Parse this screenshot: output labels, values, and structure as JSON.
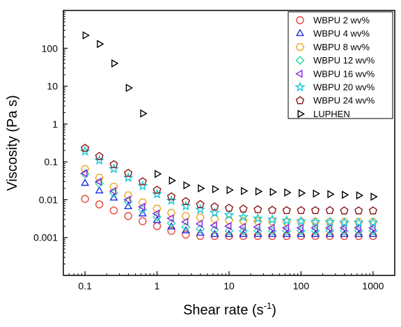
{
  "chart_data": {
    "type": "scatter",
    "xlabel": "Shear rate (s",
    "xlabel_sup": "-1",
    "xlabel_close": ")",
    "ylabel": "Viscosity (Pa s)",
    "xscale": "log",
    "yscale": "log",
    "xlim": [
      0.05,
      2000
    ],
    "ylim": [
      0.0001,
      1000
    ],
    "xticks": [
      0.1,
      1,
      10,
      100,
      1000
    ],
    "xtick_labels": [
      "0.1",
      "1",
      "10",
      "100",
      "1000"
    ],
    "yticks": [
      0.001,
      0.01,
      0.1,
      1,
      10,
      100
    ],
    "ytick_labels": [
      "0.001",
      "0.01",
      "0.1",
      "1",
      "10",
      "100"
    ],
    "grid": false,
    "legend_position": "top-right",
    "x": [
      0.1,
      0.158,
      0.251,
      0.398,
      0.631,
      1,
      1.58,
      2.51,
      3.98,
      6.31,
      10,
      15.8,
      25.1,
      39.8,
      63.1,
      100,
      158,
      251,
      398,
      631,
      1000
    ],
    "series": [
      {
        "name": "WBPU 2 wv%",
        "marker": "circle",
        "color": "#e8463c",
        "values": [
          0.0105,
          0.0075,
          0.0052,
          0.0037,
          0.0027,
          0.002,
          0.0015,
          0.0012,
          0.0011,
          0.0011,
          0.0011,
          0.0011,
          0.0011,
          0.0011,
          0.0011,
          0.0011,
          0.0011,
          0.0011,
          0.0011,
          0.0011,
          0.0011
        ]
      },
      {
        "name": "WBPU 4 wv%",
        "marker": "triangle-up",
        "color": "#1a2fe8",
        "values": [
          0.027,
          0.017,
          0.011,
          0.0065,
          0.0042,
          0.0028,
          0.0019,
          0.0015,
          0.0013,
          0.0012,
          0.0012,
          0.0012,
          0.0012,
          0.0012,
          0.0012,
          0.0012,
          0.0012,
          0.0012,
          0.0012,
          0.0012,
          0.0012
        ]
      },
      {
        "name": "WBPU 8 wv%",
        "marker": "hexagon",
        "color": "#e8a82a",
        "values": [
          0.065,
          0.038,
          0.022,
          0.013,
          0.0085,
          0.0058,
          0.0045,
          0.0037,
          0.0034,
          0.0031,
          0.0029,
          0.0028,
          0.0027,
          0.0027,
          0.0026,
          0.0026,
          0.0026,
          0.0026,
          0.0026,
          0.0026,
          0.0026
        ]
      },
      {
        "name": "WBPU 12 wv%",
        "marker": "diamond",
        "color": "#2ad8a8",
        "values": [
          0.048,
          0.027,
          0.015,
          0.009,
          0.0055,
          0.0035,
          0.0024,
          0.0019,
          0.0017,
          0.0016,
          0.0015,
          0.0015,
          0.0015,
          0.0015,
          0.0015,
          0.0015,
          0.0015,
          0.0015,
          0.0015,
          0.0015,
          0.0015
        ]
      },
      {
        "name": "WBPU 16 wv%",
        "marker": "triangle-left",
        "color": "#8a1ee0",
        "values": [
          0.05,
          0.03,
          0.017,
          0.01,
          0.0065,
          0.0043,
          0.0032,
          0.0026,
          0.0023,
          0.0021,
          0.002,
          0.0019,
          0.0019,
          0.0018,
          0.0018,
          0.0018,
          0.0018,
          0.0018,
          0.0018,
          0.0018,
          0.0018
        ]
      },
      {
        "name": "WBPU 20 wv%",
        "marker": "star",
        "color": "#1ac8d8",
        "values": [
          0.19,
          0.11,
          0.065,
          0.038,
          0.023,
          0.014,
          0.0095,
          0.0068,
          0.0055,
          0.0045,
          0.0039,
          0.0035,
          0.0032,
          0.003,
          0.0028,
          0.0027,
          0.0026,
          0.0026,
          0.0025,
          0.0025,
          0.0025
        ]
      },
      {
        "name": "WBPU 24 wv%",
        "marker": "pentagon",
        "color": "#8a1414",
        "values": [
          0.23,
          0.14,
          0.085,
          0.05,
          0.03,
          0.018,
          0.012,
          0.009,
          0.0075,
          0.0065,
          0.006,
          0.0057,
          0.0055,
          0.0053,
          0.0052,
          0.0052,
          0.0052,
          0.0052,
          0.0051,
          0.0051,
          0.0051
        ]
      },
      {
        "name": "LUPHEN",
        "marker": "triangle-right",
        "color": "#000000",
        "x": [
          0.1,
          0.158,
          0.251,
          0.398,
          0.631,
          1,
          1.58,
          2.51,
          3.98,
          6.31,
          10,
          15.8,
          25.1,
          39.8,
          63.1,
          100,
          158,
          251,
          398,
          631,
          1000
        ],
        "values": [
          220,
          130,
          40,
          9,
          1.9,
          0.048,
          0.032,
          0.024,
          0.02,
          0.019,
          0.018,
          0.017,
          0.0165,
          0.016,
          0.0155,
          0.015,
          0.0145,
          0.014,
          0.0135,
          0.013,
          0.012
        ]
      }
    ]
  }
}
